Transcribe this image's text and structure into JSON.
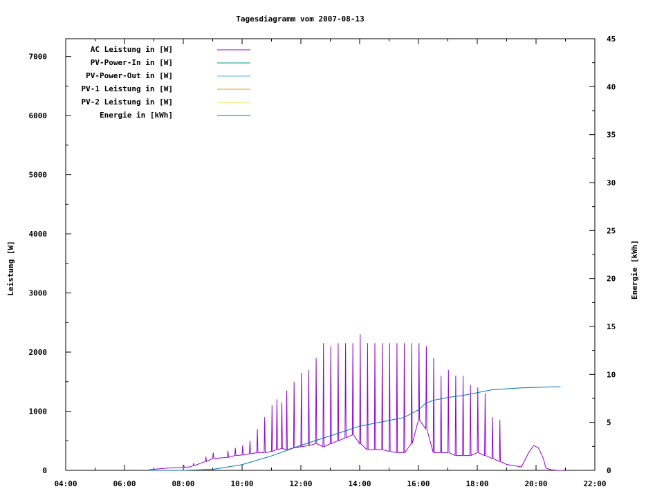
{
  "chart_data": {
    "type": "line",
    "title": "Tagesdiagramm vom 2007-08-13",
    "xlabel": "",
    "ylabel": "Leistung [W]",
    "y2label": "Energie [kWh]",
    "xlim": [
      "04:00",
      "22:00"
    ],
    "ylim": [
      0,
      7300
    ],
    "y2lim": [
      0,
      45
    ],
    "x_ticks": [
      "04:00",
      "06:00",
      "08:00",
      "10:00",
      "12:00",
      "14:00",
      "16:00",
      "18:00",
      "20:00",
      "22:00"
    ],
    "y_ticks": [
      0,
      1000,
      2000,
      3000,
      4000,
      5000,
      6000,
      7000
    ],
    "y2_ticks": [
      0,
      5,
      10,
      15,
      20,
      25,
      30,
      35,
      40,
      45
    ],
    "grid": false,
    "legend_position": "top-left",
    "legend": [
      {
        "name": "AC Leistung in [W]",
        "color": "#9400d3"
      },
      {
        "name": "PV-Power-In in [W]",
        "color": "#009e73"
      },
      {
        "name": "PV-Power-Out in [W]",
        "color": "#56b4e9"
      },
      {
        "name": "PV-1 Leistung in [W]",
        "color": "#e69f00"
      },
      {
        "name": "PV-2 Leistung in [W]",
        "color": "#f0e442"
      },
      {
        "name": "Energie in [kWh]",
        "color": "#0072b2"
      }
    ],
    "series": [
      {
        "name": "AC Leistung in [W]",
        "axis": "left",
        "color": "#9400d3",
        "x": [
          "06:50",
          "07:30",
          "08:00",
          "08:15",
          "08:20",
          "08:45",
          "09:00",
          "09:30",
          "09:45",
          "10:00",
          "10:15",
          "10:30",
          "10:45",
          "11:00",
          "11:10",
          "11:20",
          "11:30",
          "11:45",
          "12:00",
          "12:15",
          "12:30",
          "12:45",
          "13:00",
          "13:15",
          "13:30",
          "13:45",
          "14:00",
          "14:15",
          "14:30",
          "14:45",
          "15:00",
          "15:15",
          "15:30",
          "15:45",
          "16:00",
          "16:15",
          "16:30",
          "16:45",
          "17:00",
          "17:15",
          "17:30",
          "17:45",
          "18:00",
          "18:15",
          "18:30",
          "18:45",
          "19:00",
          "19:15",
          "19:30",
          "19:45",
          "19:55",
          "20:05",
          "20:15",
          "20:20",
          "20:30",
          "20:45",
          "20:55"
        ],
        "peak": [
          10,
          40,
          80,
          60,
          120,
          230,
          300,
          330,
          380,
          420,
          500,
          700,
          900,
          1100,
          1200,
          1150,
          1350,
          1500,
          1650,
          1700,
          1900,
          2150,
          2100,
          2150,
          2150,
          2150,
          2300,
          2150,
          2150,
          2150,
          2150,
          2150,
          2150,
          2150,
          2150,
          2100,
          1900,
          1600,
          1700,
          1600,
          1600,
          1450,
          1400,
          1300,
          900,
          850,
          100,
          80,
          60,
          300,
          420,
          380,
          200,
          40,
          10,
          0,
          0
        ],
        "base": [
          10,
          40,
          50,
          60,
          80,
          150,
          200,
          220,
          250,
          260,
          280,
          300,
          300,
          320,
          350,
          370,
          350,
          380,
          400,
          420,
          450,
          400,
          450,
          500,
          550,
          600,
          450,
          350,
          350,
          350,
          320,
          300,
          300,
          450,
          850,
          700,
          300,
          300,
          300,
          250,
          250,
          250,
          300,
          250,
          200,
          150,
          100,
          80,
          60,
          300,
          420,
          380,
          200,
          40,
          10,
          0,
          0
        ]
      },
      {
        "name": "Energie in [kWh]",
        "axis": "right",
        "color": "#0072b2",
        "x": [
          "06:50",
          "08:00",
          "09:00",
          "10:00",
          "11:00",
          "12:00",
          "13:00",
          "14:00",
          "15:00",
          "15:30",
          "16:00",
          "16:15",
          "16:30",
          "17:00",
          "17:30",
          "18:00",
          "18:30",
          "19:00",
          "19:30",
          "20:00",
          "20:30",
          "20:50"
        ],
        "values": [
          0,
          0,
          0.1,
          0.6,
          1.5,
          2.6,
          3.6,
          4.6,
          5.2,
          5.5,
          6.3,
          7.0,
          7.3,
          7.6,
          7.8,
          8.1,
          8.4,
          8.5,
          8.6,
          8.65,
          8.7,
          8.72
        ]
      }
    ]
  }
}
